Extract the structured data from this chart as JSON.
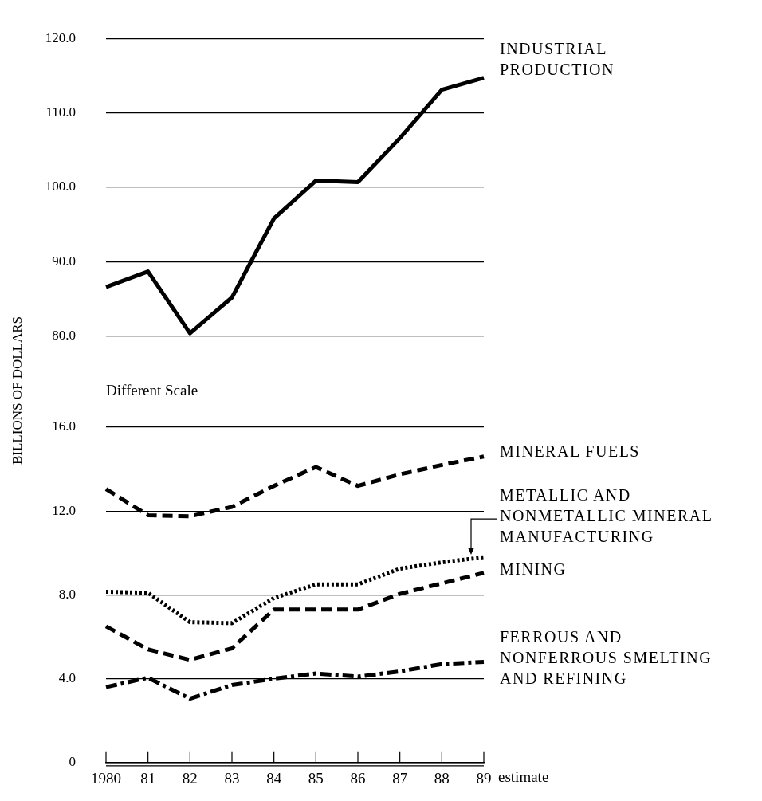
{
  "chart_data": [
    {
      "type": "line",
      "ylabel": "BILLIONS OF DOLLARS",
      "categories": [
        "1980",
        "81",
        "82",
        "83",
        "84",
        "85",
        "86",
        "87",
        "88",
        "89"
      ],
      "series": [
        {
          "name": "INDUSTRIAL PRODUCTION",
          "color": "#000000",
          "line_style": "solid",
          "values": [
            86.6,
            88.7,
            80.4,
            85.2,
            95.8,
            100.9,
            100.7,
            106.6,
            113.1,
            114.7
          ]
        }
      ],
      "ylim": [
        80,
        120
      ],
      "yticks": [
        {
          "value": 80,
          "label": "80.0"
        },
        {
          "value": 90,
          "label": "90.0"
        },
        {
          "value": 100,
          "label": "100.0"
        },
        {
          "value": 110,
          "label": "110.0"
        },
        {
          "value": 120,
          "label": "120.0"
        }
      ],
      "grid": "y",
      "tick_labels": "y"
    },
    {
      "type": "line",
      "categories": [
        "1980",
        "81",
        "82",
        "83",
        "84",
        "85",
        "86",
        "87",
        "88",
        "89"
      ],
      "series": [
        {
          "name": "MINERAL FUELS",
          "color": "#000000",
          "line_style": "dashed",
          "values": [
            13.05,
            11.8,
            11.75,
            12.2,
            13.2,
            14.1,
            13.2,
            13.75,
            14.2,
            14.6
          ]
        },
        {
          "name": "METALLIC AND NONMETALLIC MINERAL MANUFACTURING",
          "color": "#000000",
          "line_style": "dotted",
          "values": [
            8.15,
            8.1,
            6.7,
            6.65,
            7.85,
            8.5,
            8.5,
            9.25,
            9.55,
            9.8
          ]
        },
        {
          "name": "MINING",
          "color": "#000000",
          "line_style": "dashed",
          "values": [
            6.5,
            5.4,
            4.9,
            5.45,
            7.3,
            7.3,
            7.3,
            8.05,
            8.55,
            9.05
          ]
        },
        {
          "name": "FERROUS AND NONFERROUS SMELTING AND REFINING",
          "color": "#000000",
          "line_style": "dashdot",
          "values": [
            3.6,
            4.05,
            3.05,
            3.7,
            4.0,
            4.25,
            4.1,
            4.35,
            4.7,
            4.8
          ]
        }
      ],
      "ylim": [
        0,
        16
      ],
      "yticks": [
        {
          "value": 0,
          "label": "0"
        },
        {
          "value": 4,
          "label": "4.0"
        },
        {
          "value": 8,
          "label": "8.0"
        },
        {
          "value": 12,
          "label": "12.0"
        },
        {
          "value": 16,
          "label": "16.0"
        }
      ],
      "grid": "y",
      "annotations": [
        "Different Scale",
        "estimate"
      ]
    }
  ]
}
